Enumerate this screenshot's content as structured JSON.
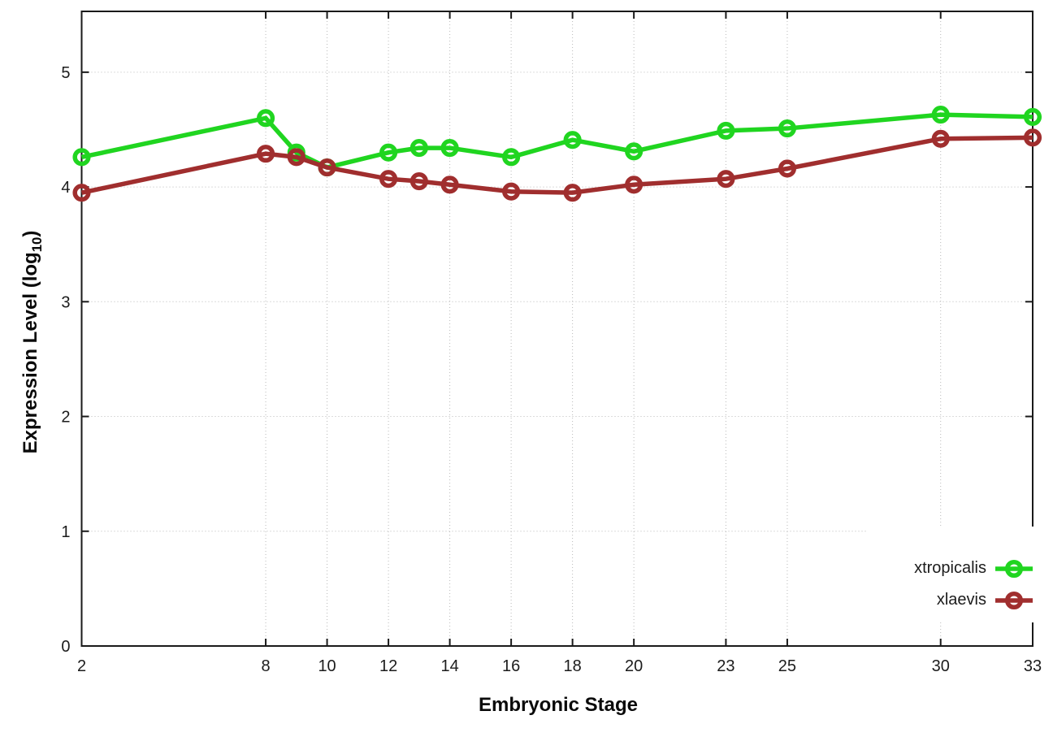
{
  "chart_data": {
    "type": "line",
    "title": "",
    "xlabel": "Embryonic Stage",
    "ylabel": "Expression Level (log10)",
    "ylabel_parts": {
      "prefix": "Expression Level (log",
      "sub": "10",
      "suffix": ")"
    },
    "x": [
      2,
      8,
      9,
      10,
      12,
      13,
      14,
      16,
      18,
      20,
      23,
      25,
      30,
      33
    ],
    "xticks": [
      2,
      8,
      10,
      12,
      14,
      16,
      18,
      20,
      23,
      25,
      30,
      33
    ],
    "yticks": [
      0,
      1,
      2,
      3,
      4,
      5
    ],
    "xlim": [
      2,
      33
    ],
    "ylim": [
      0,
      5.53
    ],
    "grid": true,
    "marker": "open-circle",
    "legend_position": "inside-bottom-right",
    "series": [
      {
        "name": "xtropicalis",
        "color": "#20d520",
        "values": [
          4.26,
          4.6,
          4.3,
          4.17,
          4.3,
          4.34,
          4.34,
          4.26,
          4.41,
          4.31,
          4.49,
          4.51,
          4.63,
          4.61
        ]
      },
      {
        "name": "xlaevis",
        "color": "#a02e2e",
        "values": [
          3.95,
          4.29,
          4.26,
          4.17,
          4.07,
          4.05,
          4.02,
          3.96,
          3.95,
          4.02,
          4.07,
          4.16,
          4.42,
          4.43
        ]
      }
    ]
  }
}
